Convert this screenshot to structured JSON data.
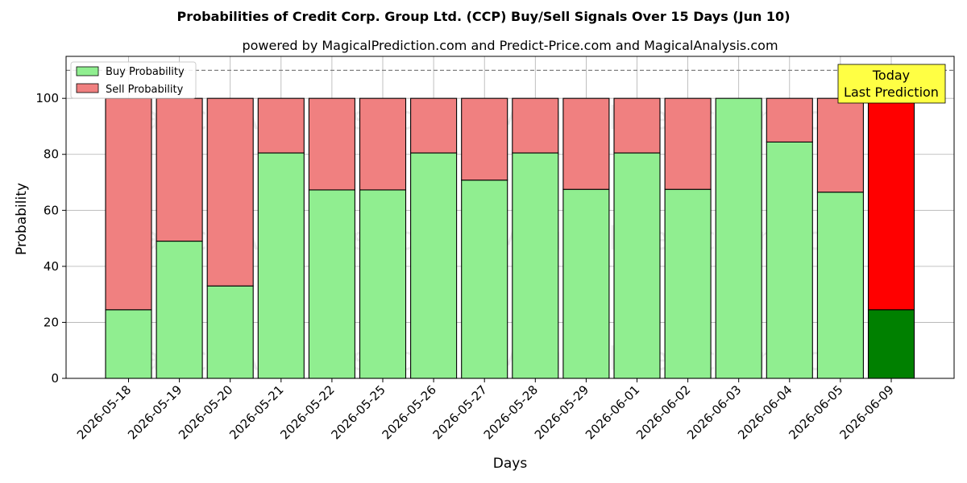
{
  "chart_data": {
    "type": "bar",
    "stacked": true,
    "title": "Probabilities of Credit Corp. Group Ltd. (CCP) Buy/Sell Signals Over 15 Days (Jun 10)",
    "subtitle": "powered by MagicalPrediction.com and Predict-Price.com and MagicalAnalysis.com",
    "xlabel": "Days",
    "ylabel": "Probability",
    "ylim": [
      0,
      115
    ],
    "yticks": [
      0,
      20,
      40,
      60,
      80,
      100
    ],
    "reference_line": 110,
    "grid": true,
    "legend_position": "top-left",
    "categories": [
      "2026-05-18",
      "2026-05-19",
      "2026-05-20",
      "2026-05-21",
      "2026-05-22",
      "2026-05-25",
      "2026-05-26",
      "2026-05-27",
      "2026-05-28",
      "2026-05-29",
      "2026-06-01",
      "2026-06-02",
      "2026-06-03",
      "2026-06-04",
      "2026-06-05",
      "2026-06-09"
    ],
    "series": [
      {
        "name": "Buy Probability",
        "color": "#90ee90",
        "highlight_color": "#008000",
        "values": [
          24.5,
          49,
          33,
          80.5,
          67.3,
          67.3,
          80.5,
          70.8,
          80.5,
          67.5,
          80.5,
          67.5,
          100,
          84.4,
          66.5,
          24.5
        ]
      },
      {
        "name": "Sell Probability",
        "color": "#f08080",
        "highlight_color": "#ff0000",
        "values": [
          75.5,
          51,
          67,
          19.5,
          32.7,
          32.7,
          19.5,
          29.2,
          19.5,
          32.5,
          19.5,
          32.5,
          0,
          15.6,
          33.5,
          75.5
        ]
      }
    ],
    "highlight_index": 15,
    "annotation": {
      "line1": "Today",
      "line2": "Last Prediction",
      "color": "#ffff44"
    },
    "watermarks": [
      "MagicalAnalysis.com",
      "MagicalPrediction.com"
    ]
  }
}
